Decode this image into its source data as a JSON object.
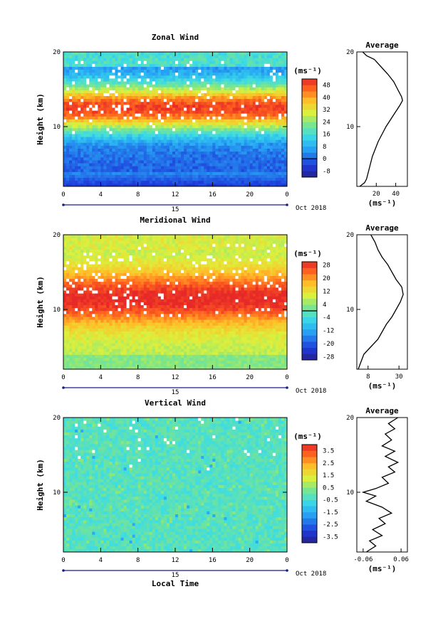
{
  "chart_data": [
    {
      "type": "heatmap",
      "title": "Zonal Wind",
      "ylabel": "Height (km)",
      "ylim": [
        2,
        20
      ],
      "yticks": [
        "10",
        "20"
      ],
      "x_ticks": [
        "0",
        "4",
        "8",
        "12",
        "16",
        "20",
        "0"
      ],
      "xlim": [
        0,
        24
      ],
      "day_label": "15",
      "month_label": "Oct 2018",
      "unit_label": "(ms⁻¹)",
      "colorbar": {
        "range": [
          -12,
          52
        ],
        "ticks": [
          "48",
          "40",
          "32",
          "24",
          "16",
          "8",
          "0",
          "-8"
        ],
        "zero_line": 0
      },
      "profile": {
        "title": "Average",
        "ylabel": "(ms⁻¹)",
        "xlim": [
          0,
          52
        ],
        "x_ticks": [
          "20",
          "40"
        ],
        "y_ticks": [
          "10",
          "20"
        ],
        "points": [
          [
            3,
            2
          ],
          [
            8,
            2.5
          ],
          [
            10,
            3
          ],
          [
            12,
            4
          ],
          [
            14,
            5
          ],
          [
            16,
            6
          ],
          [
            19,
            7
          ],
          [
            22,
            8
          ],
          [
            26,
            9
          ],
          [
            30,
            10
          ],
          [
            35,
            11
          ],
          [
            40,
            12
          ],
          [
            44,
            12.8
          ],
          [
            47,
            13.5
          ],
          [
            46,
            14
          ],
          [
            42,
            15
          ],
          [
            38,
            16
          ],
          [
            32,
            17
          ],
          [
            25,
            18
          ],
          [
            18,
            19
          ],
          [
            10,
            19.5
          ],
          [
            6,
            20
          ]
        ]
      }
    },
    {
      "type": "heatmap",
      "title": "Meridional Wind",
      "ylabel": "Height (km)",
      "ylim": [
        2,
        20
      ],
      "yticks": [
        "10",
        "20"
      ],
      "x_ticks": [
        "0",
        "4",
        "8",
        "12",
        "16",
        "20",
        "0"
      ],
      "xlim": [
        0,
        24
      ],
      "day_label": "15",
      "month_label": "Oct 2018",
      "unit_label": "(ms⁻¹)",
      "colorbar": {
        "range": [
          -30,
          30
        ],
        "ticks": [
          "28",
          "20",
          "12",
          "4",
          "-4",
          "-12",
          "-20",
          "-28"
        ],
        "zero_line": 0
      },
      "profile": {
        "title": "Average",
        "ylabel": "(ms⁻¹)",
        "xlim": [
          0,
          36
        ],
        "x_ticks": [
          "8",
          "30"
        ],
        "y_ticks": [
          "10",
          "20"
        ],
        "points": [
          [
            1,
            2
          ],
          [
            3,
            3
          ],
          [
            5,
            4
          ],
          [
            10,
            5
          ],
          [
            15,
            6
          ],
          [
            18,
            7
          ],
          [
            21,
            8
          ],
          [
            25,
            9
          ],
          [
            28,
            10
          ],
          [
            31,
            11
          ],
          [
            33,
            12
          ],
          [
            32,
            13
          ],
          [
            28,
            14
          ],
          [
            25,
            15
          ],
          [
            22,
            16
          ],
          [
            18,
            17
          ],
          [
            15,
            18
          ],
          [
            13,
            19
          ],
          [
            10,
            20
          ]
        ]
      }
    },
    {
      "type": "heatmap",
      "title": "Vertical Wind",
      "ylabel": "Height (km)",
      "ylim": [
        2,
        20
      ],
      "yticks": [
        "10",
        "20"
      ],
      "x_ticks": [
        "0",
        "4",
        "8",
        "12",
        "16",
        "20",
        "0"
      ],
      "xlim": [
        0,
        24
      ],
      "day_label": "15",
      "month_label": "Oct 2018",
      "xlabel": "Local Time",
      "unit_label": "(ms⁻¹)",
      "colorbar": {
        "range": [
          -4,
          4
        ],
        "ticks": [
          "3.5",
          "2.5",
          "1.5",
          "0.5",
          "-0.5",
          "-1.5",
          "-2.5",
          "-3.5"
        ]
      },
      "profile": {
        "title": "Average",
        "ylabel": "(ms⁻¹)",
        "xlim": [
          -0.08,
          0.08
        ],
        "x_ticks": [
          "-0.06",
          "0.06"
        ],
        "y_ticks": [
          "10",
          "20"
        ],
        "points": [
          [
            -0.05,
            2
          ],
          [
            -0.02,
            2.8
          ],
          [
            -0.04,
            3.5
          ],
          [
            0.0,
            4.2
          ],
          [
            -0.03,
            5
          ],
          [
            0.01,
            5.8
          ],
          [
            -0.01,
            6.5
          ],
          [
            0.03,
            7.2
          ],
          [
            0.0,
            8
          ],
          [
            -0.05,
            8.8
          ],
          [
            -0.02,
            9.5
          ],
          [
            -0.06,
            10
          ],
          [
            -0.02,
            10.5
          ],
          [
            0.02,
            11.2
          ],
          [
            0.0,
            12
          ],
          [
            0.04,
            12.7
          ],
          [
            0.02,
            13.4
          ],
          [
            0.05,
            14
          ],
          [
            0.01,
            14.8
          ],
          [
            0.04,
            15.5
          ],
          [
            0.0,
            16.2
          ],
          [
            0.03,
            17
          ],
          [
            0.01,
            17.8
          ],
          [
            0.04,
            18.5
          ],
          [
            0.02,
            19.2
          ],
          [
            0.05,
            20
          ]
        ]
      }
    }
  ]
}
